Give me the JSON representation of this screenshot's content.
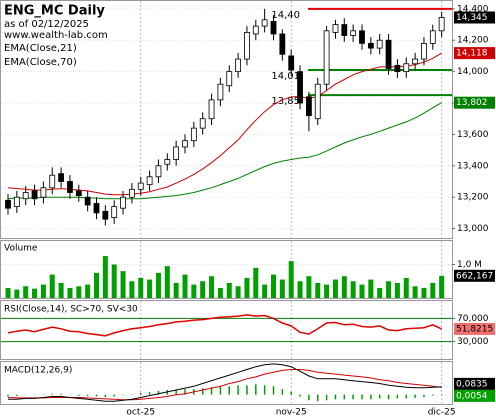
{
  "chart_data": [
    {
      "type": "candlestick",
      "title": "ENG_MC Daily",
      "subtitle": "as of 02/12/2025",
      "source": "www.wealth-lab.com",
      "categories": [
        null,
        null,
        null,
        null,
        null,
        null,
        null,
        null,
        null,
        null,
        null,
        null,
        null,
        null,
        null,
        "oct-25",
        null,
        null,
        null,
        null,
        null,
        null,
        null,
        null,
        null,
        null,
        null,
        null,
        null,
        null,
        null,
        null,
        "nov-25",
        null,
        null,
        null,
        null,
        null,
        null,
        null,
        null,
        null,
        null,
        null,
        null,
        null,
        null,
        null,
        null,
        "dic-25"
      ],
      "open": [
        13.18,
        13.14,
        13.19,
        13.24,
        13.2,
        13.26,
        13.35,
        13.3,
        13.24,
        13.2,
        13.16,
        13.11,
        13.07,
        13.13,
        13.2,
        13.25,
        13.28,
        13.33,
        13.41,
        13.44,
        13.52,
        13.56,
        13.64,
        13.7,
        13.82,
        13.91,
        14.0,
        14.08,
        14.24,
        14.29,
        14.32,
        14.24,
        14.1,
        14.0,
        13.84,
        13.7,
        13.92,
        14.25,
        14.3,
        14.23,
        14.26,
        14.18,
        14.15,
        14.2,
        14.04,
        14.0,
        14.05,
        14.08,
        14.18,
        14.26
      ],
      "high": [
        13.22,
        13.24,
        13.27,
        13.28,
        13.3,
        13.39,
        13.39,
        13.34,
        13.28,
        13.24,
        13.2,
        13.15,
        13.18,
        13.24,
        13.29,
        13.33,
        13.37,
        13.44,
        13.48,
        13.56,
        13.6,
        13.68,
        13.74,
        13.86,
        13.96,
        14.04,
        14.12,
        14.29,
        14.33,
        14.4,
        14.36,
        14.27,
        14.14,
        14.04,
        13.87,
        13.96,
        14.29,
        14.33,
        14.34,
        14.3,
        14.3,
        14.22,
        14.24,
        14.24,
        14.08,
        14.09,
        14.12,
        14.22,
        14.3,
        14.38
      ],
      "low": [
        13.09,
        13.1,
        13.15,
        13.15,
        13.16,
        13.22,
        13.26,
        13.19,
        13.17,
        13.11,
        13.06,
        13.02,
        13.03,
        13.09,
        13.16,
        13.21,
        13.24,
        13.29,
        13.37,
        13.4,
        13.48,
        13.52,
        13.6,
        13.66,
        13.78,
        13.87,
        13.96,
        14.04,
        14.2,
        14.25,
        14.2,
        14.07,
        13.97,
        13.76,
        13.62,
        13.66,
        13.88,
        14.21,
        14.19,
        14.19,
        14.14,
        14.11,
        14.11,
        13.98,
        13.96,
        13.96,
        14.01,
        14.04,
        14.14,
        14.22
      ],
      "close": [
        13.13,
        13.2,
        13.23,
        13.19,
        13.26,
        13.34,
        13.3,
        13.23,
        13.21,
        13.15,
        13.1,
        13.06,
        13.14,
        13.2,
        13.25,
        13.29,
        13.33,
        13.4,
        13.44,
        13.52,
        13.56,
        13.64,
        13.7,
        13.82,
        13.92,
        14.0,
        14.08,
        14.25,
        14.29,
        14.33,
        14.24,
        14.11,
        14.01,
        13.8,
        13.72,
        13.92,
        14.26,
        14.3,
        14.23,
        14.26,
        14.18,
        14.15,
        14.2,
        14.02,
        14.0,
        14.05,
        14.08,
        14.18,
        14.26,
        14.345
      ],
      "close_tag": "14,345",
      "up_color": "#ffffff",
      "down_color": "#000000",
      "series": [
        {
          "name": "EMA(Close,21)",
          "color": "#d00000",
          "tag": "14,118",
          "values": [
            13.26,
            13.255,
            13.25,
            13.245,
            13.245,
            13.25,
            13.255,
            13.25,
            13.245,
            13.24,
            13.23,
            13.22,
            13.215,
            13.215,
            13.22,
            13.225,
            13.235,
            13.25,
            13.265,
            13.29,
            13.315,
            13.345,
            13.38,
            13.42,
            13.465,
            13.515,
            13.565,
            13.63,
            13.69,
            13.745,
            13.79,
            13.82,
            13.84,
            13.84,
            13.83,
            13.84,
            13.88,
            13.92,
            13.95,
            13.98,
            14.0,
            14.015,
            14.03,
            14.03,
            14.03,
            14.035,
            14.045,
            14.06,
            14.085,
            14.118
          ]
        },
        {
          "name": "EMA(Close,70)",
          "color": "#008000",
          "tag": "13,802",
          "values": [
            13.19,
            13.195,
            13.195,
            13.195,
            13.2,
            13.2,
            13.2,
            13.2,
            13.2,
            13.195,
            13.195,
            13.19,
            13.19,
            13.19,
            13.19,
            13.19,
            13.195,
            13.2,
            13.205,
            13.21,
            13.22,
            13.23,
            13.245,
            13.26,
            13.28,
            13.3,
            13.32,
            13.345,
            13.37,
            13.395,
            13.415,
            13.43,
            13.44,
            13.45,
            13.455,
            13.47,
            13.495,
            13.52,
            13.545,
            13.565,
            13.585,
            13.6,
            13.62,
            13.64,
            13.66,
            13.68,
            13.705,
            13.735,
            13.77,
            13.802
          ]
        }
      ],
      "levels": [
        {
          "value": 14.4,
          "label": "14,40",
          "color": "#e00000"
        },
        {
          "value": 14.01,
          "label": "14,01",
          "color": "#008000"
        },
        {
          "value": 13.85,
          "label": "13,85",
          "color": "#008000"
        }
      ],
      "ylim": [
        12.94,
        14.45
      ],
      "yticks": [
        {
          "value": 13,
          "label": "13,000"
        },
        {
          "value": 13.2,
          "label": "13,200"
        },
        {
          "value": 13.4,
          "label": "13,400"
        },
        {
          "value": 13.6,
          "label": "13,600"
        },
        {
          "value": 13.8,
          "label": "13,800"
        },
        {
          "value": 14,
          "label": "14,000"
        },
        {
          "value": 14.2,
          "label": "14,200"
        },
        {
          "value": 14.4,
          "label": "14,400"
        }
      ]
    },
    {
      "type": "bar",
      "title": "Volume",
      "color": "#00a000",
      "tag": "662,167",
      "values": [
        300000,
        250000,
        350000,
        280000,
        400000,
        700000,
        450000,
        300000,
        350000,
        400000,
        750000,
        1250000,
        1000000,
        800000,
        500000,
        600000,
        550000,
        750000,
        950000,
        450000,
        700000,
        400000,
        500000,
        650000,
        300000,
        450000,
        350000,
        600000,
        900000,
        400000,
        700000,
        550000,
        1100000,
        500000,
        650000,
        450000,
        400000,
        550000,
        650000,
        500000,
        400000,
        550000,
        300000,
        500000,
        450000,
        600000,
        350000,
        300000,
        450000,
        662167
      ],
      "ylim": [
        0,
        1700000
      ],
      "yticks": [
        {
          "value": 1000000,
          "label": "1,0 M"
        }
      ]
    },
    {
      "type": "line",
      "title": "RSI(Close,14), SC>70, SV<30",
      "color": "#e00000",
      "band_color": "#008000",
      "tag": "51,8215",
      "values": [
        45,
        48,
        50,
        47,
        51,
        55,
        52,
        48,
        47,
        44,
        42,
        40,
        45,
        49,
        52,
        54,
        56,
        59,
        61,
        64,
        65,
        67,
        68,
        70,
        72,
        73,
        74,
        76,
        74,
        75,
        70,
        62,
        57,
        46,
        43,
        52,
        62,
        63,
        59,
        60,
        56,
        55,
        57,
        50,
        49,
        52,
        53,
        54,
        59,
        51.8215
      ],
      "ylim": [
        0,
        100
      ],
      "yticks": [
        {
          "value": 70,
          "label": "70,000"
        },
        {
          "value": 30,
          "label": "30,000"
        }
      ]
    },
    {
      "type": "macd",
      "title": "MACD(12,26,9)",
      "macd": {
        "color": "#000000",
        "tag": "0,0835",
        "values": [
          -0.05,
          -0.05,
          -0.04,
          -0.04,
          -0.03,
          -0.02,
          -0.02,
          -0.03,
          -0.04,
          -0.05,
          -0.06,
          -0.07,
          -0.07,
          -0.06,
          -0.05,
          -0.03,
          -0.01,
          0.01,
          0.03,
          0.05,
          0.07,
          0.09,
          0.12,
          0.15,
          0.18,
          0.21,
          0.24,
          0.27,
          0.3,
          0.32,
          0.33,
          0.32,
          0.3,
          0.25,
          0.2,
          0.17,
          0.17,
          0.17,
          0.16,
          0.15,
          0.14,
          0.13,
          0.12,
          0.1,
          0.09,
          0.08,
          0.075,
          0.075,
          0.08,
          0.0835
        ]
      },
      "signal": {
        "color": "#d00000",
        "values": [
          -0.03,
          -0.035,
          -0.035,
          -0.035,
          -0.035,
          -0.03,
          -0.03,
          -0.03,
          -0.03,
          -0.035,
          -0.04,
          -0.045,
          -0.05,
          -0.055,
          -0.055,
          -0.05,
          -0.04,
          -0.03,
          -0.02,
          0,
          0.01,
          0.03,
          0.05,
          0.07,
          0.09,
          0.12,
          0.14,
          0.17,
          0.19,
          0.22,
          0.24,
          0.26,
          0.27,
          0.27,
          0.26,
          0.24,
          0.23,
          0.22,
          0.21,
          0.2,
          0.19,
          0.18,
          0.16,
          0.15,
          0.13,
          0.12,
          0.11,
          0.1,
          0.09,
          0.0781
        ]
      },
      "histogram": {
        "color": "#00a000",
        "tag": "0,0054",
        "values": [
          -0.02,
          -0.015,
          -0.005,
          -0.005,
          0.005,
          0.01,
          0.01,
          0,
          -0.01,
          -0.015,
          -0.02,
          -0.025,
          -0.02,
          -0.005,
          0.005,
          0.02,
          0.03,
          0.04,
          0.05,
          0.05,
          0.06,
          0.06,
          0.07,
          0.08,
          0.09,
          0.09,
          0.1,
          0.1,
          0.11,
          0.1,
          0.09,
          0.06,
          0.03,
          -0.02,
          -0.06,
          -0.07,
          -0.06,
          -0.05,
          -0.05,
          -0.05,
          -0.05,
          -0.05,
          -0.04,
          -0.05,
          -0.04,
          -0.04,
          -0.035,
          -0.025,
          -0.01,
          0.0054
        ]
      },
      "ylim": [
        -0.1,
        0.35
      ]
    }
  ]
}
